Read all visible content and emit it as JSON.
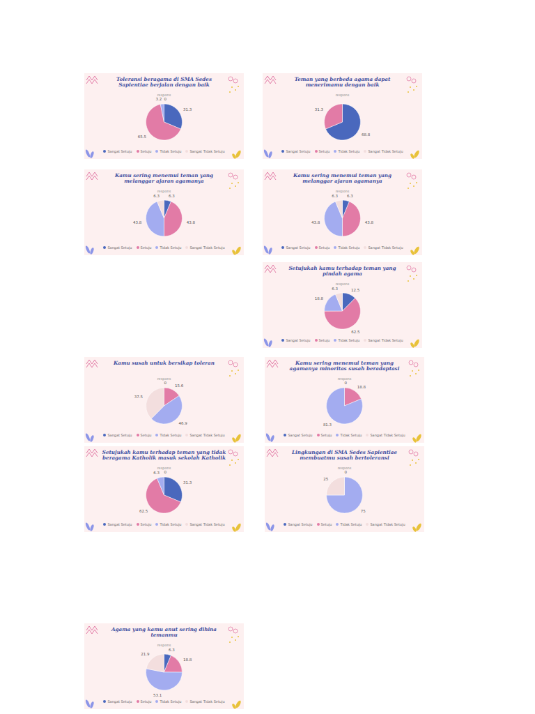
{
  "chart_data": [
    {
      "type": "pie",
      "title": "Toleransi beragama di SMA Sedes Sapientiae berjalan dengan baik",
      "subtitle": "respons",
      "categories": [
        "Sangat Setuju",
        "Setuju",
        "Tidak Setuju",
        "Sangat Tidak Setuju"
      ],
      "values": [
        31.3,
        65.5,
        3.2,
        0
      ],
      "colors": [
        "#4a68bd",
        "#e27ba6",
        "#a3acf0",
        "#f3dede"
      ],
      "data_labels": true,
      "legend": "bottom"
    },
    {
      "type": "pie",
      "title": "Teman yang berbeda agama dapat menerimamu dengan baik",
      "subtitle": "respons",
      "categories": [
        "Sangat Setuju",
        "Setuju",
        "Tidak Setuju",
        "Sangat Tidak Setuju"
      ],
      "values": [
        68.8,
        31.3,
        null,
        null
      ],
      "colors": [
        "#4a68bd",
        "#e27ba6",
        "#a3acf0",
        "#f3dede"
      ],
      "data_labels": true,
      "legend": "bottom"
    },
    {
      "type": "pie",
      "title": "Kamu sering menemui teman yang melanggar ajaran agamanya",
      "subtitle": "respons",
      "categories": [
        "Sangat Setuju",
        "Setuju",
        "Tidak Setuju",
        "Sangat Tidak Setuju"
      ],
      "values": [
        6.3,
        43.8,
        43.8,
        6.3
      ],
      "colors": [
        "#4a68bd",
        "#e27ba6",
        "#a3acf0",
        "#f3dede"
      ],
      "data_labels": true,
      "legend": "bottom"
    },
    {
      "type": "pie",
      "title": "Kamu sering menemui teman yang melanggar ajaran agamanya",
      "subtitle": "respons",
      "categories": [
        "Sangat Setuju",
        "Setuju",
        "Tidak Setuju",
        "Sangat Tidak Setuju"
      ],
      "values": [
        6.3,
        43.8,
        43.8,
        6.3
      ],
      "colors": [
        "#4a68bd",
        "#e27ba6",
        "#a3acf0",
        "#f3dede"
      ],
      "data_labels": true,
      "legend": "bottom"
    },
    {
      "type": "pie",
      "title": "Setujukah kamu terhadap teman yang pindah agama",
      "subtitle": "respons",
      "categories": [
        "Sangat Setuju",
        "Setuju",
        "Tidak Setuju",
        "Sangat Tidak Setuju"
      ],
      "values": [
        12.5,
        62.5,
        18.8,
        6.3
      ],
      "colors": [
        "#4a68bd",
        "#e27ba6",
        "#a3acf0",
        "#f3dede"
      ],
      "data_labels": true,
      "legend": "bottom"
    },
    {
      "type": "pie",
      "title": "Kamu susah untuk bersikap toleran",
      "subtitle": "respons",
      "categories": [
        "Sangat Setuju",
        "Setuju",
        "Tidak Setuju",
        "Sangat Tidak Setuju"
      ],
      "values": [
        0,
        15.6,
        46.9,
        37.5
      ],
      "colors": [
        "#4a68bd",
        "#e27ba6",
        "#a3acf0",
        "#f3dede"
      ],
      "data_labels": true,
      "legend": "bottom"
    },
    {
      "type": "pie",
      "title": "Kamu sering menemui teman yang agamanya minoritas susah beradaptasi",
      "subtitle": "respons",
      "categories": [
        "Sangat Setuju",
        "Setuju",
        "Tidak Setuju",
        "Sangat Tidak Setuju"
      ],
      "values": [
        0,
        18.8,
        81.3,
        null
      ],
      "colors": [
        "#4a68bd",
        "#e27ba6",
        "#a3acf0",
        "#f3dede"
      ],
      "data_labels": true,
      "legend": "bottom"
    },
    {
      "type": "pie",
      "title": "Setujukah kamu terhadap teman yang tidak beragama Katholik masuk sekolah Katholik",
      "subtitle": "respons",
      "categories": [
        "Sangat Setuju",
        "Setuju",
        "Tidak Setuju",
        "Sangat Tidak Setuju"
      ],
      "values": [
        31.3,
        62.5,
        6.3,
        0
      ],
      "colors": [
        "#4a68bd",
        "#e27ba6",
        "#a3acf0",
        "#f3dede"
      ],
      "data_labels": true,
      "legend": "bottom"
    },
    {
      "type": "pie",
      "title": "Lingkungan di SMA Sedes Sapientiae membuatmu susah bertoleransi",
      "subtitle": "respons",
      "categories": [
        "Sangat Setuju",
        "Setuju",
        "Tidak Setuju",
        "Sangat Tidak Setuju"
      ],
      "values": [
        0,
        null,
        75,
        25
      ],
      "colors": [
        "#4a68bd",
        "#e27ba6",
        "#a3acf0",
        "#f3dede"
      ],
      "data_labels": true,
      "legend": "bottom"
    },
    {
      "type": "pie",
      "title": "Agama yang kamu anut sering dihina temanmu",
      "subtitle": "respons",
      "categories": [
        "Sangat Setuju",
        "Setuju",
        "Tidak Setuju",
        "Sangat Tidak Setuju"
      ],
      "values": [
        6.3,
        18.8,
        53.1,
        21.9
      ],
      "colors": [
        "#4a68bd",
        "#e27ba6",
        "#a3acf0",
        "#f3dede"
      ],
      "data_labels": true,
      "legend": "bottom"
    }
  ]
}
